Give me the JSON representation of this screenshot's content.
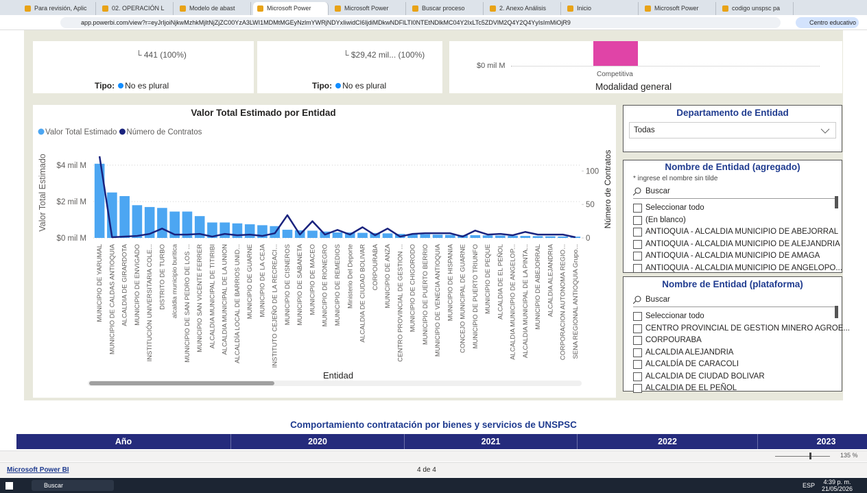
{
  "browser": {
    "tabs": [
      "Para revisión, Aplic",
      "02. OPERACIÓN L",
      "Modelo de abast",
      "Microsoft Power",
      "Microsoft Power",
      "Buscar proceso",
      "2. Anexo Análisis",
      "Inicio",
      "Microsoft Power",
      "codigo unspsc pa"
    ],
    "url": "app.powerbi.com/view?r=eyJrIjoiNjkwMzhkMjItNjZjZC00YzA3LWI1MDMtMGEyNzlmYWRjNDYxIiwidCI6IjdiMDkwNDFlLTI0NTEtNDlkMC04Y2IxLTc5ZDVlM2Q4Y2Q4YyIsImMiOjR9",
    "profile": "Centro educativo"
  },
  "cards": [
    {
      "value_label": "441 (100%)",
      "tipo_label": "Tipo:",
      "tipo_value": "No es plural"
    },
    {
      "value_label": "$29,42 mil... (100%)",
      "tipo_label": "Tipo:",
      "tipo_value": "No es plural"
    }
  ],
  "modalidad": {
    "axis_label": "$0 mil M",
    "category": "Competitiva",
    "title": "Modalidad general"
  },
  "chart_data": {
    "type": "bar",
    "title": "Valor Total Estimado por Entidad",
    "legend": "top-left",
    "x_label": "Entidad",
    "y_label": "Valor Total Estimado",
    "y2_label": "Número de Contratos",
    "categories": [
      "MUNICIPIO DE YARUMAL",
      "MUNICIPIO DE CALDAS ANTIOQUIA",
      "ALCALDIA DE GIRARDOTA",
      "MUNICIPIO DE ENVIGADO",
      "INSTITUCIÓN UNIVERSITARIA COLE...",
      "DISTRITO DE TURBO",
      "alcaldia municipio buritica",
      "MUNICIPIO DE SAN PEDRO DE LOS ...",
      "MUNICIPIO SAN VICENTE FERRER",
      "ALCALDIA MUNICIPAL DE TITIRIBI",
      "ALCALDIA MUNICIPAL DE LA UNION",
      "ALCALDÍA LOCAL DE BARRIOS UNID...",
      "MUNICIPIO DE GUARNE",
      "MUNICIPIO DE LA CEJA",
      "INSTITUTO CEJEÑO DE LA RECREACI...",
      "MUNICIPIO DE CISNEROS",
      "MUNICIPIO DE SABANETA",
      "MUNICIPIO DE MACEO",
      "MUNICIPIO DE RIONEGRO",
      "MUNICIPIO DE REMEDIOS",
      "Ministerio Del Deporte",
      "ALCALDIA DE CIUDAD BOLIVAR",
      "CORPOURABA",
      "MUNICIPIO DE ANZA",
      "CENTRO PROVINCIAL DE GESTION ...",
      "MUNICIPIO DE CHIGORODO",
      "MUNICIPIO DE PUERTO BERRIO",
      "MUNICIPIO DE VENECIA ANTIOQUIA",
      "MUNICIPIO DE HISPANIA",
      "CONCEJO MUNICIPAL DE GUARNE",
      "MUNICIPIO DE PUERTO TRIUNFO",
      "MUNICIPIO DE PEQUE",
      "ALCALDIA DE EL PEÑOL",
      "ALCALDIA MUNICIPIO DE ANGELOP...",
      "ALCALDIA MUNICIPAL DE LA PINTA...",
      "MUNICIPIO DE ABEJORRAL",
      "ALCALDIA ALEJANDRIA",
      "CORPORACION AUTONOMA REGIO...",
      "SENA REGIONAL ANTIOQUIA Grupo..."
    ],
    "series": [
      {
        "name": "Valor Total Estimado",
        "type": "bar",
        "color": "#4ca6f2",
        "values": [
          4.08,
          2.5,
          2.3,
          1.8,
          1.7,
          1.65,
          1.45,
          1.45,
          1.2,
          0.85,
          0.85,
          0.8,
          0.75,
          0.7,
          0.65,
          0.45,
          0.42,
          0.4,
          0.35,
          0.3,
          0.3,
          0.28,
          0.27,
          0.25,
          0.22,
          0.2,
          0.2,
          0.18,
          0.17,
          0.16,
          0.15,
          0.14,
          0.13,
          0.12,
          0.11,
          0.1,
          0.09,
          0.08,
          0.07
        ]
      },
      {
        "name": "Número de Contratos",
        "type": "line",
        "axis": "y2",
        "color": "#1a237e",
        "values": [
          122,
          1,
          2,
          3,
          6,
          14,
          5,
          5,
          6,
          2,
          6,
          4,
          5,
          3,
          7,
          34,
          5,
          25,
          5,
          12,
          5,
          16,
          4,
          14,
          2,
          6,
          7,
          7,
          7,
          2,
          11,
          5,
          6,
          4,
          9,
          5,
          5,
          5,
          1
        ]
      }
    ],
    "ylim": [
      0,
      4.6
    ],
    "yticks": [
      {
        "value": 0,
        "label": "$0 mil M"
      },
      {
        "value": 2,
        "label": "$2 mil M"
      },
      {
        "value": 4,
        "label": "$4 mil M"
      }
    ],
    "y2lim": [
      0,
      125
    ],
    "y2ticks": [
      0,
      50,
      100
    ],
    "grid": true
  },
  "slicers": [
    {
      "title": "Departamento de Entidad",
      "selected": "Todas"
    },
    {
      "title": "Nombre de Entidad (agregado)",
      "note": "* ingrese el nombre sin tilde",
      "search": "Buscar",
      "items": [
        "Seleccionar todo",
        "(En blanco)",
        "ANTIOQUIA - ALCALDIA MUNICIPIO DE ABEJORRAL",
        "ANTIOQUIA - ALCALDIA MUNICIPIO DE ALEJANDRIA",
        "ANTIOQUIA - ALCALDIA MUNICIPIO DE AMAGA",
        "ANTIOQUIA - ALCALDIA MUNICIPIO DE ANGELOPO..."
      ]
    },
    {
      "title": "Nombre de Entidad (plataforma)",
      "search": "Buscar",
      "items": [
        "Seleccionar todo",
        "CENTRO PROVINCIAL DE GESTION MINERO AGROE...",
        "CORPOURABA",
        "ALCALDIA ALEJANDRIA",
        "ALCALDÍA DE CARACOLI",
        "ALCALDIA DE CIUDAD BOLIVAR",
        "ALCALDIA DE EL PEÑOL"
      ]
    }
  ],
  "table": {
    "title": "Comportamiento contratación por bienes y servicios de UNSPSC",
    "header": [
      "Año",
      "2020",
      "2021",
      "2022",
      "2023"
    ]
  },
  "zoom": "135 %",
  "footer": {
    "brand": "Microsoft Power BI",
    "page": "4 de 4"
  },
  "taskbar": {
    "search": "Buscar",
    "lang": "ESP",
    "time": "4:39 p. m.",
    "date": "21/05/2026"
  }
}
